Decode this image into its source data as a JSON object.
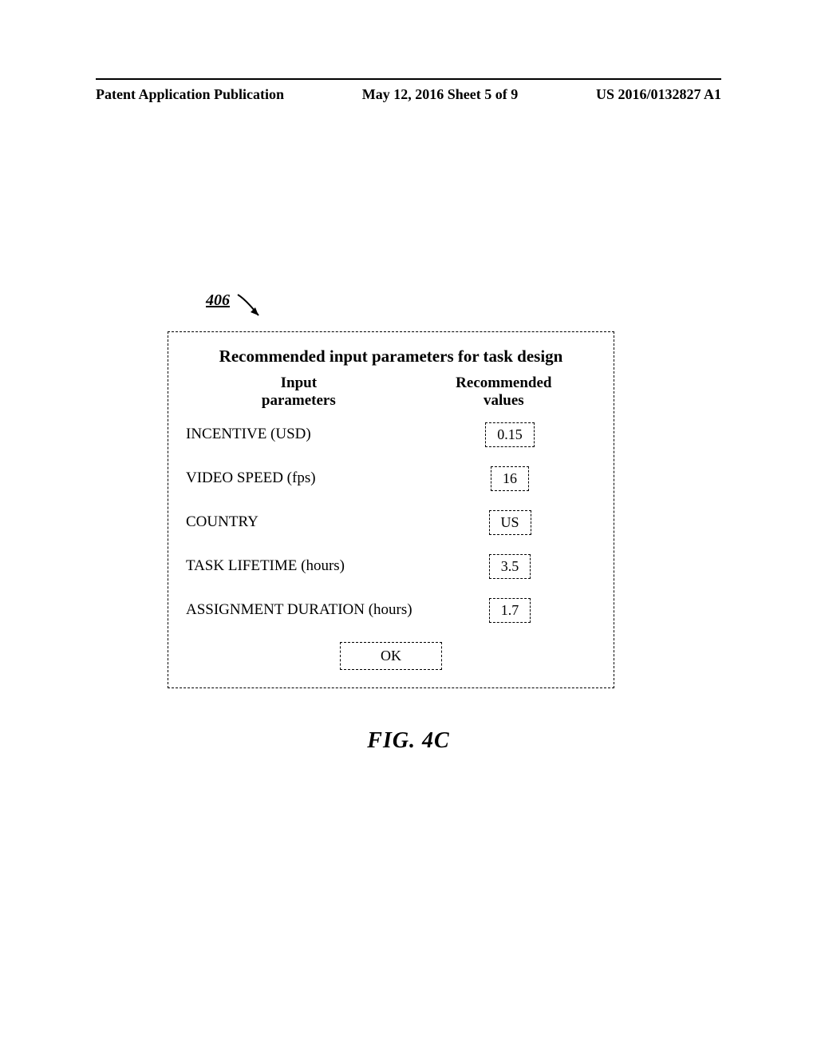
{
  "header": {
    "left": "Patent Application Publication",
    "center": "May 12, 2016  Sheet 5 of 9",
    "right": "US 2016/0132827 A1"
  },
  "reference": {
    "number": "406"
  },
  "panel": {
    "title": "Recommended input parameters for task design",
    "col1": "Input\nparameters",
    "col2": "Recommended\nvalues",
    "rows": [
      {
        "label": "INCENTIVE (USD)",
        "value": "0.15"
      },
      {
        "label": "VIDEO SPEED (fps)",
        "value": "16"
      },
      {
        "label": "COUNTRY",
        "value": "US"
      },
      {
        "label": "TASK LIFETIME (hours)",
        "value": "3.5"
      },
      {
        "label": "ASSIGNMENT DURATION (hours)",
        "value": "1.7"
      }
    ],
    "ok_label": "OK"
  },
  "figure_label": "FIG. 4C",
  "colors": {
    "text": "#000000",
    "background": "#ffffff",
    "border": "#000000"
  }
}
